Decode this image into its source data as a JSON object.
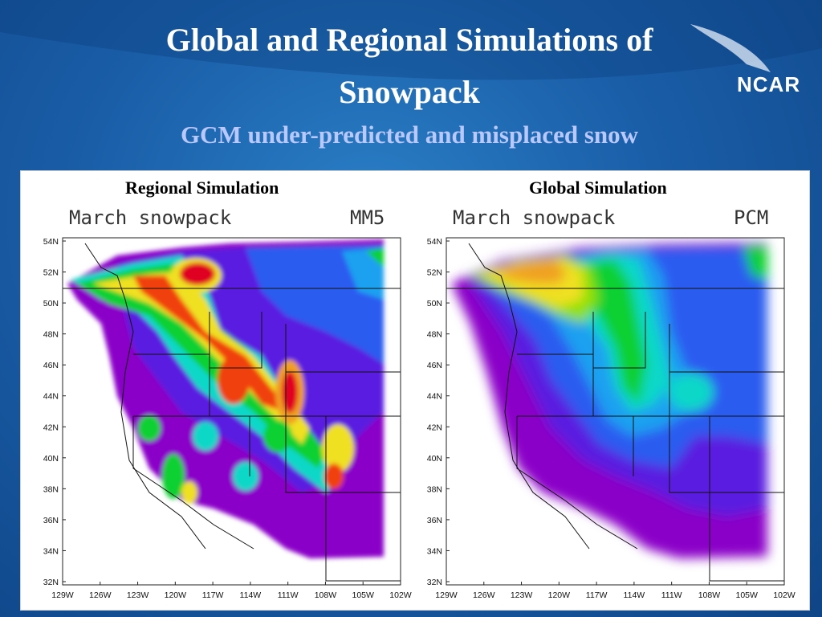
{
  "slide": {
    "title_line1": "Global and Regional Simulations of",
    "title_line2": "Snowpack",
    "subtitle": "GCM under-predicted and misplaced snow",
    "logo": "NCAR"
  },
  "colors": {
    "scale": [
      "#8a00c8",
      "#5a1fe0",
      "#2b5cf0",
      "#1aa0f0",
      "#10d8c8",
      "#10d030",
      "#90e000",
      "#f0e020",
      "#f0a020",
      "#f04010",
      "#e00020"
    ]
  },
  "maps": [
    {
      "caption": "Regional Simulation",
      "field_label": "March snowpack",
      "model_label": "MM5",
      "lat_ticks": [
        "54N",
        "52N",
        "50N",
        "48N",
        "46N",
        "44N",
        "42N",
        "40N",
        "38N",
        "36N",
        "34N",
        "32N"
      ],
      "lon_ticks": [
        "129W",
        "126W",
        "123W",
        "120W",
        "117W",
        "114W",
        "111W",
        "108W",
        "105W",
        "102W"
      ]
    },
    {
      "caption": "Global Simulation",
      "field_label": "March snowpack",
      "model_label": "PCM",
      "lat_ticks": [
        "54N",
        "52N",
        "50N",
        "48N",
        "46N",
        "44N",
        "42N",
        "40N",
        "38N",
        "36N",
        "34N",
        "32N"
      ],
      "lon_ticks": [
        "129W",
        "126W",
        "123W",
        "120W",
        "117W",
        "114W",
        "111W",
        "108W",
        "105W",
        "102W"
      ]
    }
  ]
}
